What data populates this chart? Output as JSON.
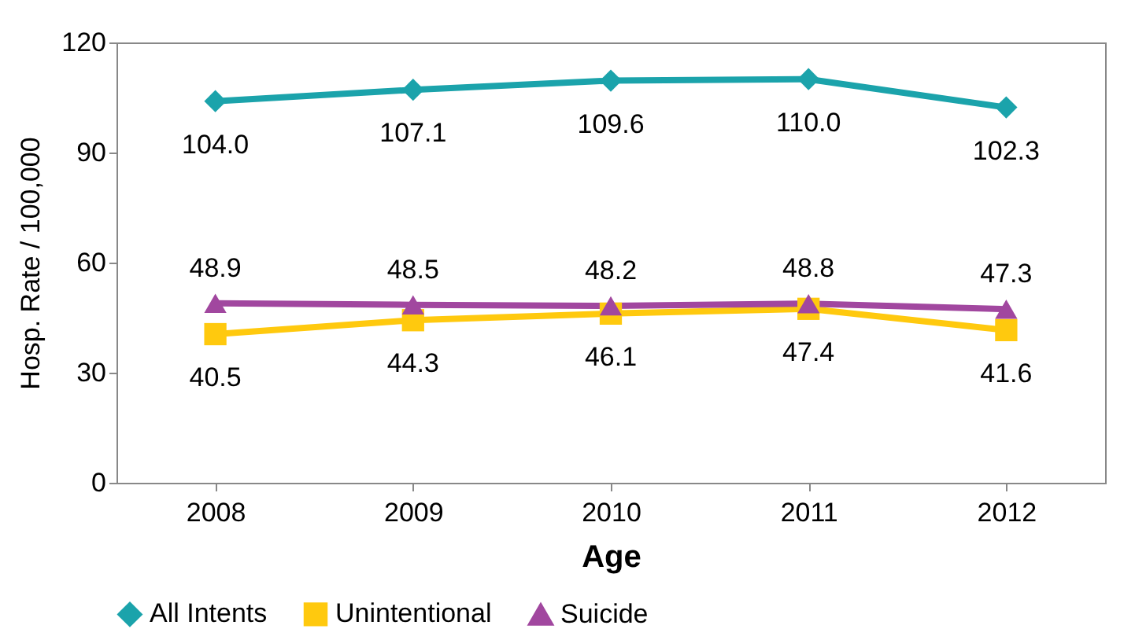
{
  "chart_data": {
    "type": "line",
    "xlabel": "Age",
    "ylabel": "Hosp. Rate / 100,000",
    "categories": [
      "2008",
      "2009",
      "2010",
      "2011",
      "2012"
    ],
    "series": [
      {
        "name": "All Intents",
        "color": "#1ba3ab",
        "marker": "diamond",
        "values": [
          104.0,
          107.1,
          109.6,
          110.0,
          102.3
        ],
        "value_labels": [
          "104.0",
          "107.1",
          "109.6",
          "110.0",
          "102.3"
        ]
      },
      {
        "name": "Unintentional",
        "color": "#ffc90e",
        "marker": "square",
        "values": [
          40.5,
          44.3,
          46.1,
          47.4,
          41.6
        ],
        "value_labels": [
          "40.5",
          "44.3",
          "46.1",
          "47.4",
          "41.6"
        ]
      },
      {
        "name": "Suicide",
        "color": "#a1479f",
        "marker": "triangle",
        "values": [
          48.9,
          48.5,
          48.2,
          48.8,
          47.3
        ],
        "value_labels": [
          "48.9",
          "48.5",
          "48.2",
          "48.8",
          "47.3"
        ]
      }
    ],
    "ylim": [
      0,
      120
    ],
    "yticks": [
      0,
      30,
      60,
      90,
      120
    ],
    "grid": false,
    "legend": "bottom"
  }
}
